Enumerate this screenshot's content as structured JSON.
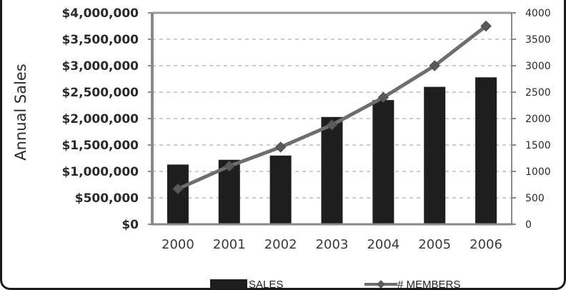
{
  "chart_data": {
    "type": "bar",
    "categories": [
      "2000",
      "2001",
      "2002",
      "2003",
      "2004",
      "2005",
      "2006"
    ],
    "series": [
      {
        "name": "SALES",
        "type": "bar",
        "axis": "left",
        "color": "#1e1e1e",
        "values": [
          1130000,
          1220000,
          1300000,
          2030000,
          2350000,
          2600000,
          2780000
        ]
      },
      {
        "name": "# MEMBERS",
        "type": "line",
        "axis": "right",
        "marker": "diamond",
        "color": "#6e6e6e",
        "values": [
          670,
          1100,
          1460,
          1880,
          2400,
          3000,
          3750
        ]
      }
    ],
    "ylabel": "Annual Sales",
    "ylim": [
      0,
      4000000
    ],
    "y2lim": [
      0,
      4000
    ],
    "y_ticks": [
      "$0",
      "$500,000",
      "$1,000,000",
      "$1,500,000",
      "$2,000,000",
      "$2,500,000",
      "$3,000,000",
      "$3,500,000",
      "$4,000,000"
    ],
    "y2_ticks": [
      "0",
      "500",
      "1000",
      "1500",
      "2000",
      "2500",
      "3000",
      "3500",
      "4000"
    ],
    "grid": "horizontal dashed",
    "legend": "bottom-center"
  }
}
